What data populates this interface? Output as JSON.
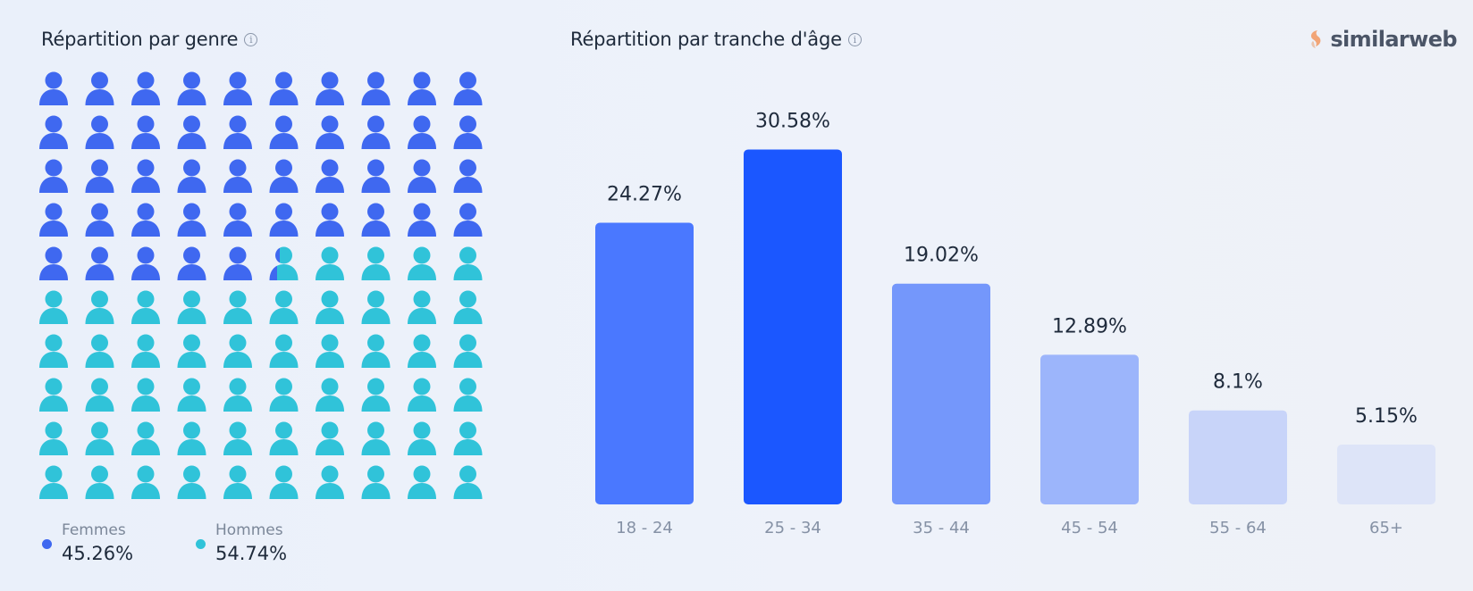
{
  "gender": {
    "title": "Répartition par genre",
    "info_icon": "info-icon",
    "women": {
      "label": "Femmes",
      "value_text": "45.26%",
      "value": 45.26,
      "color": "#3f68f0"
    },
    "men": {
      "label": "Hommes",
      "value_text": "54.74%",
      "value": 54.74,
      "color": "#30c3d9"
    }
  },
  "age": {
    "title": "Répartition par tranche d'âge",
    "info_icon": "info-icon"
  },
  "logo": {
    "text": "similarweb"
  },
  "chart_data": [
    {
      "type": "bar",
      "title": "Répartition par tranche d'âge",
      "categories": [
        "18 - 24",
        "25 - 34",
        "35 - 44",
        "45 - 54",
        "55 - 64",
        "65+"
      ],
      "values": [
        24.27,
        30.58,
        19.02,
        12.89,
        8.1,
        5.15
      ],
      "labels": [
        "24.27%",
        "30.58%",
        "19.02%",
        "12.89%",
        "8.1%",
        "5.15%"
      ],
      "colors": [
        "#4a78ff",
        "#1b57ff",
        "#7497fb",
        "#9cb5fb",
        "#c8d4f9",
        "#dde4f8"
      ],
      "grid": false
    },
    {
      "type": "pictograph",
      "title": "Répartition par genre",
      "categories": [
        "Femmes",
        "Hommes"
      ],
      "values": [
        45.26,
        54.74
      ],
      "total_icons": 100,
      "colors": [
        "#3f68f0",
        "#30c3d9"
      ]
    }
  ]
}
